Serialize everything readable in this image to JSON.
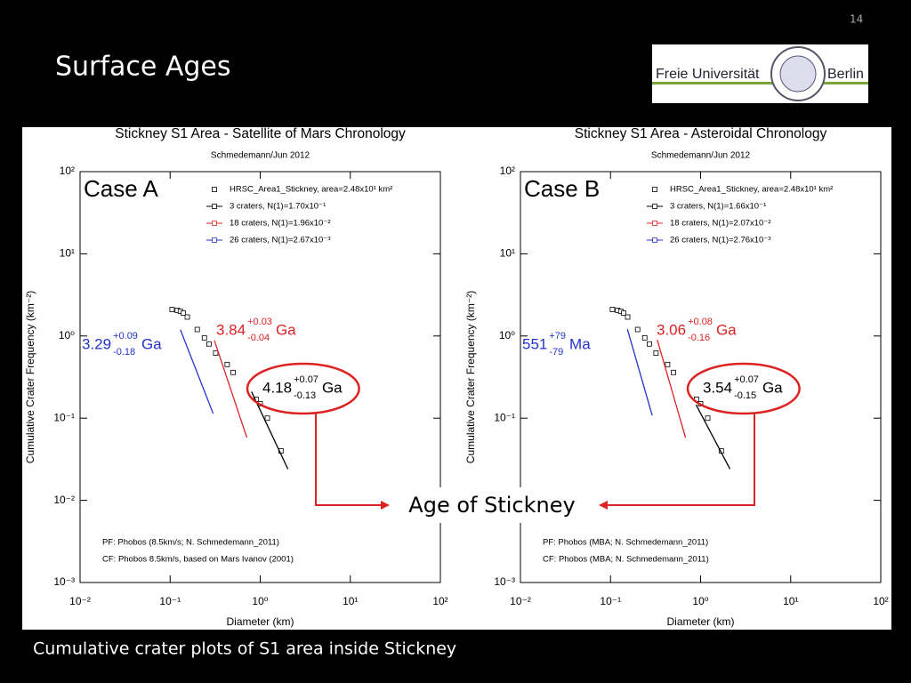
{
  "slide": {
    "number": "14",
    "title": "Surface Ages",
    "caption": "Cumulative crater plots of S1 area inside Stickney",
    "callout": "Age of Stickney",
    "logo_left": "Freie Universität",
    "logo_right": "Berlin"
  },
  "chart_data": [
    {
      "type": "scatter",
      "title": "Stickney S1 Area - Satellite of Mars Chronology",
      "subtitle": "Schmedemann/Jun 2012",
      "case_label": "Case A",
      "xlabel": "Diameter (km)",
      "ylabel": "Cumulative Crater Frequency (km⁻²)",
      "log_x": true,
      "log_y": true,
      "xlim": [
        0.01,
        100
      ],
      "ylim": [
        0.001,
        100
      ],
      "xticks": [
        {
          "value": 0.01,
          "label": "10⁻²"
        },
        {
          "value": 0.1,
          "label": "10⁻¹"
        },
        {
          "value": 1,
          "label": "10⁰"
        },
        {
          "value": 10,
          "label": "10¹"
        },
        {
          "value": 100,
          "label": "10²"
        }
      ],
      "yticks": [
        {
          "value": 0.001,
          "label": "10⁻³"
        },
        {
          "value": 0.01,
          "label": "10⁻²"
        },
        {
          "value": 0.1,
          "label": "10⁻¹"
        },
        {
          "value": 1,
          "label": "10⁰"
        },
        {
          "value": 10,
          "label": "10¹"
        },
        {
          "value": 100,
          "label": "10²"
        }
      ],
      "series": [
        {
          "name": "HRSC_Area1_Stickney, area=2.48x10¹ km²",
          "color": "#000000",
          "marker": "square",
          "line": false,
          "x": [
            0.105,
            0.12,
            0.13,
            0.14,
            0.155,
            0.2,
            0.24,
            0.27,
            0.32,
            0.43,
            0.5,
            0.9,
            1.0,
            1.2,
            1.7
          ],
          "values": [
            2.1,
            2.05,
            2.0,
            1.9,
            1.7,
            1.2,
            0.95,
            0.8,
            0.62,
            0.45,
            0.36,
            0.17,
            0.15,
            0.1,
            0.04
          ]
        },
        {
          "name": "3 craters, N(1)=1.70x10⁻¹",
          "color": "#000000",
          "line": true,
          "x": [
            0.8,
            2.03
          ],
          "values": [
            0.21,
            0.024
          ]
        },
        {
          "name": "18 craters, N(1)=1.96x10⁻²",
          "color": "#dd2222",
          "line": true,
          "x": [
            0.31,
            0.71
          ],
          "values": [
            0.88,
            0.058
          ]
        },
        {
          "name": "26 craters, N(1)=2.67x10⁻³",
          "color": "#2233cc",
          "line": true,
          "x": [
            0.13,
            0.3
          ],
          "values": [
            1.19,
            0.114
          ]
        }
      ],
      "annotations": [
        {
          "value": "3.29",
          "plus": "+0.09",
          "minus": "-0.18",
          "unit": "Ga",
          "color": "#2233cc",
          "circled": false
        },
        {
          "value": "3.84",
          "plus": "+0.03",
          "minus": "-0.04",
          "unit": "Ga",
          "color": "#dd2222",
          "circled": false
        },
        {
          "value": "4.18",
          "plus": "+0.07",
          "minus": "-0.13",
          "unit": "Ga",
          "color": "#000000",
          "circled": true
        }
      ],
      "notes": [
        "PF: Phobos (8.5km/s; N. Schmedemann_2011)",
        "CF: Phobos 8.5km/s, based on Mars Ivanov (2001)"
      ]
    },
    {
      "type": "scatter",
      "title": "Stickney S1 Area - Asteroidal Chronology",
      "subtitle": "Schmedemann/Jun 2012",
      "case_label": "Case B",
      "xlabel": "Diameter (km)",
      "ylabel": "Cumulative Crater Frequency (km⁻²)",
      "log_x": true,
      "log_y": true,
      "xlim": [
        0.01,
        100
      ],
      "ylim": [
        0.001,
        100
      ],
      "xticks": [
        {
          "value": 0.01,
          "label": "10⁻²"
        },
        {
          "value": 0.1,
          "label": "10⁻¹"
        },
        {
          "value": 1,
          "label": "10⁰"
        },
        {
          "value": 10,
          "label": "10¹"
        },
        {
          "value": 100,
          "label": "10²"
        }
      ],
      "yticks": [
        {
          "value": 0.001,
          "label": "10⁻³"
        },
        {
          "value": 0.01,
          "label": "10⁻²"
        },
        {
          "value": 0.1,
          "label": "10⁻¹"
        },
        {
          "value": 1,
          "label": "10⁰"
        },
        {
          "value": 10,
          "label": "10¹"
        },
        {
          "value": 100,
          "label": "10²"
        }
      ],
      "series": [
        {
          "name": "HRSC_Area1_Stickney, area=2.48x10¹ km²",
          "color": "#000000",
          "marker": "square",
          "line": false,
          "x": [
            0.105,
            0.12,
            0.13,
            0.14,
            0.155,
            0.2,
            0.24,
            0.27,
            0.32,
            0.43,
            0.5,
            0.9,
            1.0,
            1.2,
            1.7
          ],
          "values": [
            2.1,
            2.05,
            2.0,
            1.9,
            1.7,
            1.2,
            0.95,
            0.8,
            0.62,
            0.45,
            0.36,
            0.17,
            0.15,
            0.1,
            0.04
          ]
        },
        {
          "name": "3 craters, N(1)=1.66x10⁻¹",
          "color": "#000000",
          "line": true,
          "x": [
            0.89,
            2.12
          ],
          "values": [
            0.146,
            0.024
          ]
        },
        {
          "name": "18 craters, N(1)=2.07x10⁻²",
          "color": "#dd2222",
          "line": true,
          "x": [
            0.33,
            0.68
          ],
          "values": [
            0.9,
            0.058
          ]
        },
        {
          "name": "26 craters, N(1)=2.76x10⁻³",
          "color": "#2233cc",
          "line": true,
          "x": [
            0.154,
            0.29
          ],
          "values": [
            1.21,
            0.108
          ]
        }
      ],
      "annotations": [
        {
          "value": "551",
          "plus": "+79",
          "minus": "-79",
          "unit": "Ma",
          "color": "#2233cc",
          "circled": false
        },
        {
          "value": "3.06",
          "plus": "+0.08",
          "minus": "-0.16",
          "unit": "Ga",
          "color": "#dd2222",
          "circled": false
        },
        {
          "value": "3.54",
          "plus": "+0.07",
          "minus": "-0.15",
          "unit": "Ga",
          "color": "#000000",
          "circled": true
        }
      ],
      "notes": [
        "PF: Phobos (MBA; N. Schmedemann_2011)",
        "CF: Phobos (MBA; N. Schmedemann_2011)"
      ]
    }
  ]
}
